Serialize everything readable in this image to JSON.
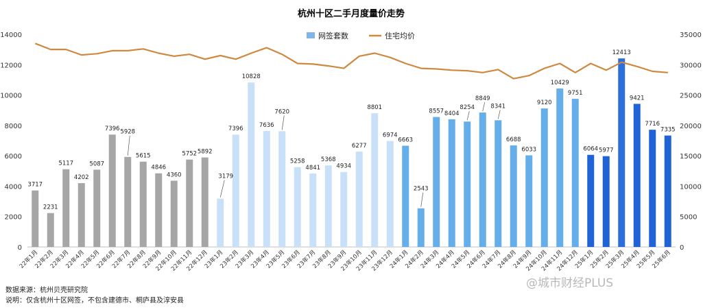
{
  "chart_data": {
    "type": "bar",
    "title": "杭州十区二手月度量价走势",
    "categories": [
      "22年1月",
      "22年2月",
      "22年3月",
      "22年4月",
      "22年5月",
      "22年6月",
      "22年7月",
      "22年8月",
      "22年9月",
      "22年10月",
      "22年11月",
      "22年12月",
      "23年1月",
      "23年2月",
      "23年3月",
      "23年4月",
      "23年5月",
      "23年6月",
      "23年7月",
      "23年8月",
      "23年9月",
      "23年10月",
      "23年11月",
      "23年12月",
      "24年1月",
      "24年2月",
      "24年3月",
      "24年4月",
      "24年5月",
      "24年6月",
      "24年7月",
      "24年8月",
      "24年9月",
      "24年10月",
      "24年11月",
      "24年12月",
      "25年1月",
      "25年2月",
      "25年3月",
      "25年4月",
      "25年5月",
      "25年6月"
    ],
    "series": [
      {
        "name": "网签套数",
        "axis": "left",
        "type": "bar",
        "values": [
          3717,
          2231,
          5117,
          4202,
          5087,
          7396,
          5928,
          5615,
          4846,
          4360,
          5752,
          5892,
          3179,
          7396,
          10828,
          7636,
          7620,
          5258,
          4841,
          5368,
          4934,
          6277,
          8801,
          6974,
          6663,
          2543,
          8557,
          8404,
          8254,
          8849,
          8341,
          6688,
          6033,
          9120,
          10429,
          9751,
          6064,
          5977,
          12413,
          9421,
          7716,
          7335
        ]
      },
      {
        "name": "住宅均价",
        "axis": "right",
        "type": "line",
        "values": [
          33500,
          32500,
          32500,
          31600,
          31800,
          32300,
          32300,
          32600,
          31900,
          31400,
          31700,
          30900,
          31500,
          30900,
          31900,
          32800,
          31700,
          30200,
          30100,
          29800,
          29400,
          31400,
          31900,
          31200,
          30200,
          29400,
          29300,
          29100,
          29000,
          28700,
          29200,
          27700,
          28200,
          29400,
          30200,
          28700,
          30200,
          29100,
          30400,
          29700,
          28900,
          28700
        ]
      }
    ],
    "y_left": {
      "min": 0,
      "max": 14000,
      "ticks": [
        0,
        2000,
        4000,
        6000,
        8000,
        10000,
        12000,
        14000
      ]
    },
    "y_right": {
      "min": 0,
      "max": 35000,
      "ticks": [
        0,
        5000,
        10000,
        15000,
        20000,
        25000,
        30000,
        35000
      ]
    },
    "legend_position": "top-center",
    "grid": false,
    "colors": {
      "bars_2022": "#a6a6a6",
      "bars_2023": "#c9e1f8",
      "bars_2024": "#66aee9",
      "bars_2025": "#1f63d6",
      "bar_2025_peak": "#2c6fdc",
      "line": "#d0883e",
      "legend_bar": "#7fb6ea"
    }
  },
  "footer": {
    "source": "数据来源：杭州贝壳研究院",
    "note": "说明：仅含杭州十区网签，不包含建德市、桐庐县及淳安县"
  },
  "watermark": "@城市财经PLUS"
}
